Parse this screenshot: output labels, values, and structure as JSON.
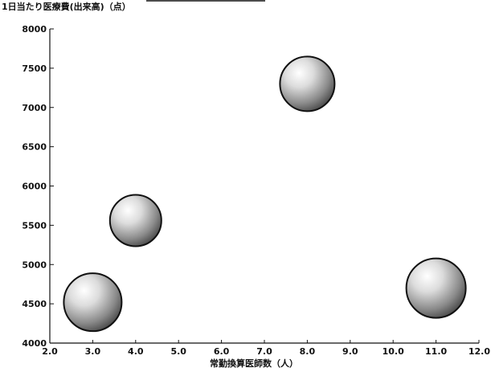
{
  "chart_data": {
    "type": "scatter",
    "title": "",
    "ylabel": "1日当たり医療費(出来高)（点）",
    "xlabel": "常勤換算医師数（人）",
    "xlim": [
      2.0,
      12.0
    ],
    "ylim": [
      4000,
      8000
    ],
    "x_ticks": [
      2.0,
      3.0,
      4.0,
      5.0,
      6.0,
      7.0,
      8.0,
      9.0,
      10.0,
      11.0,
      12.0
    ],
    "x_tick_labels": [
      "2.0",
      "3.0",
      "4.0",
      "5.0",
      "6.0",
      "7.0",
      "8.0",
      "9.0",
      "10.0",
      "11.0",
      "12.0"
    ],
    "y_ticks": [
      4000,
      4500,
      5000,
      5500,
      6000,
      6500,
      7000,
      7500,
      8000
    ],
    "y_tick_labels": [
      "4000",
      "4500",
      "5000",
      "5500",
      "6000",
      "6500",
      "7000",
      "7500",
      "8000"
    ],
    "grid": false,
    "marker": "bubble",
    "points": [
      {
        "x": 3.0,
        "y": 4520
      },
      {
        "x": 4.0,
        "y": 5560
      },
      {
        "x": 8.0,
        "y": 7300
      },
      {
        "x": 11.0,
        "y": 4700
      }
    ]
  }
}
